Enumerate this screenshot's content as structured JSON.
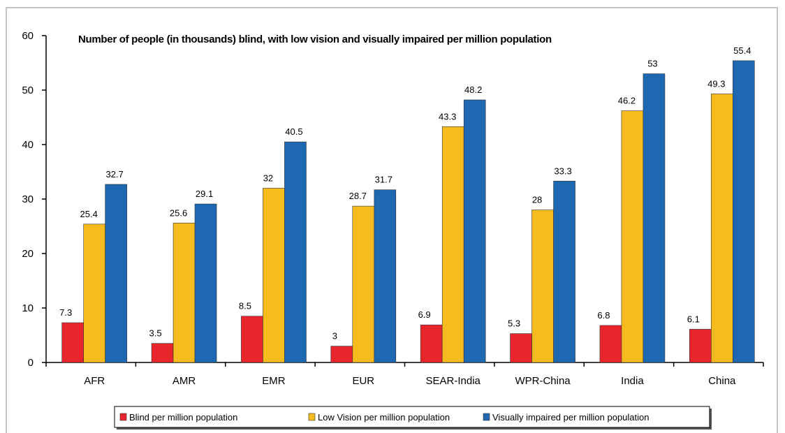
{
  "chart_data": {
    "type": "bar",
    "title": "Number of people (in thousands)  blind, with low vision and visually impaired per million population",
    "categories": [
      "AFR",
      "AMR",
      "EMR",
      "EUR",
      "SEAR-India",
      "WPR-China",
      "India",
      "China"
    ],
    "series": [
      {
        "name": "Blind per million population",
        "color": "#e8252b",
        "values": [
          7.3,
          3.5,
          8.5,
          3,
          6.9,
          5.3,
          6.8,
          6.1
        ]
      },
      {
        "name": "Low Vision per million population",
        "color": "#f6bb1f",
        "values": [
          25.4,
          25.6,
          32,
          28.7,
          43.3,
          28,
          46.2,
          49.3
        ]
      },
      {
        "name": "Visually impaired per million population",
        "color": "#1e67b1",
        "values": [
          32.7,
          29.1,
          40.5,
          31.7,
          48.2,
          33.3,
          53,
          55.4
        ]
      }
    ],
    "ylim": [
      0,
      60
    ],
    "yticks": [
      "0",
      "10",
      "20",
      "30",
      "40",
      "50",
      "60"
    ],
    "grid": false,
    "legend": "bottom",
    "data_labels": true
  }
}
